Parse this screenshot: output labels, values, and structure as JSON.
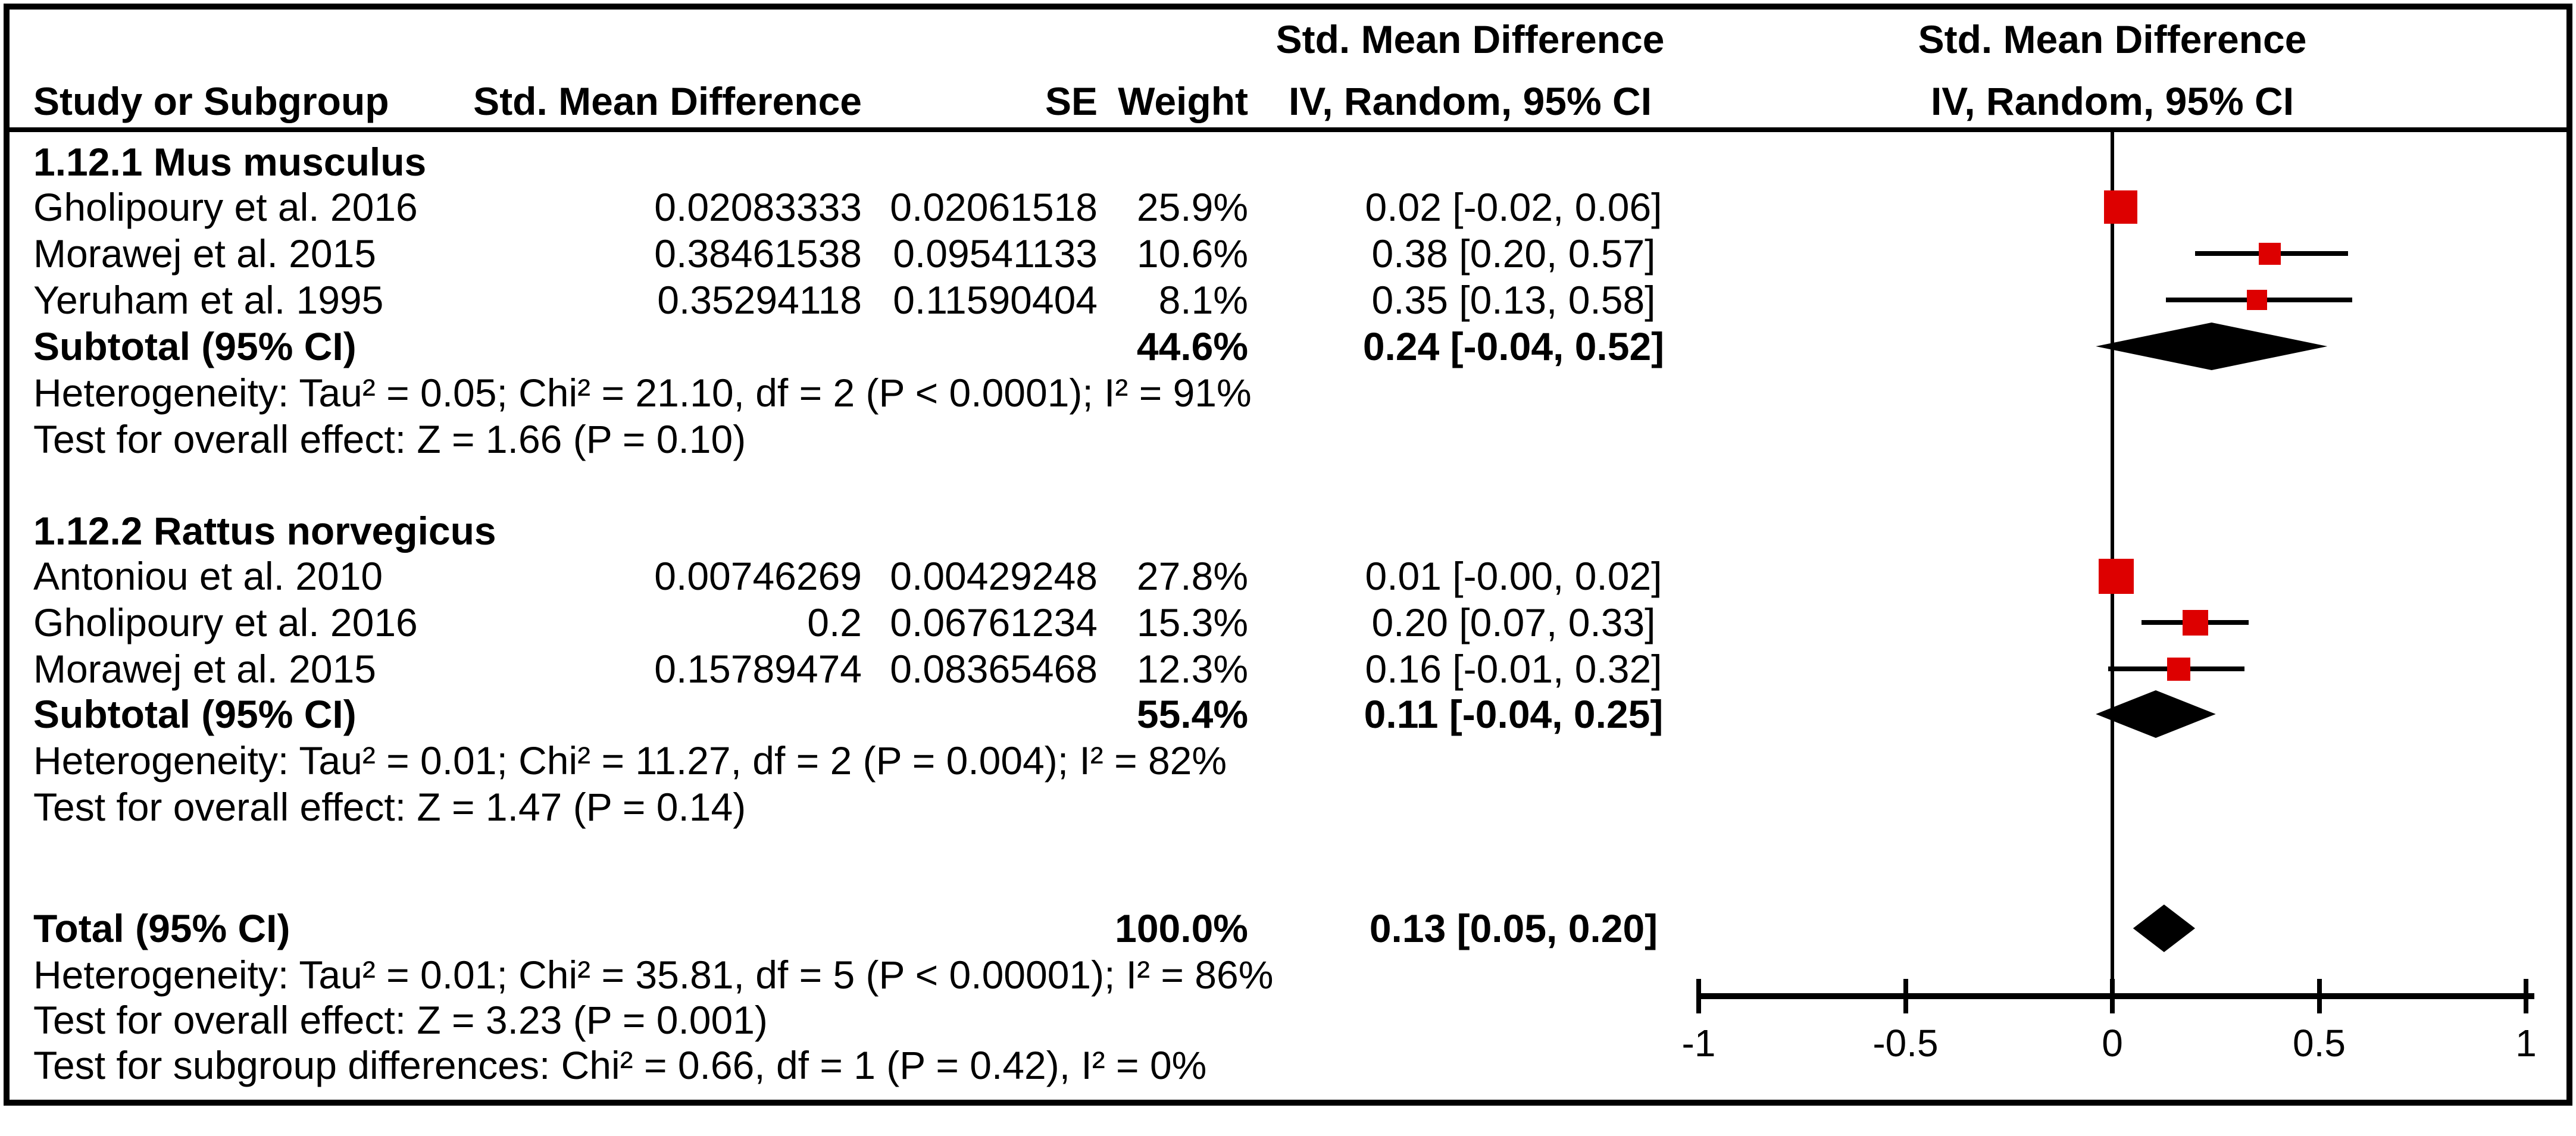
{
  "header": {
    "col_study": "Study or Subgroup",
    "col_smd": "Std. Mean Difference",
    "col_se": "SE",
    "col_weight": "Weight",
    "ci_col_line1": "Std. Mean Difference",
    "ci_col_line2": "IV, Random, 95% CI",
    "plot_col_line1": "Std. Mean Difference",
    "plot_col_line2": "IV, Random, 95% CI"
  },
  "colors": {
    "marker_red": "#dd0000",
    "diamond_black": "#000000",
    "text": "#000000",
    "border": "#000000"
  },
  "chart_data": {
    "type": "forest",
    "effect_measure": "Std. Mean Difference",
    "model": "IV, Random, 95% CI",
    "axis": {
      "min": -1,
      "max": 1,
      "tick_values": [
        -1,
        -0.5,
        0,
        0.5,
        1
      ],
      "tick_labels": [
        "-1",
        "-0.5",
        "0",
        "0.5",
        "1"
      ]
    },
    "groups": [
      {
        "title": "1.12.1 Mus musculus",
        "studies": [
          {
            "name": "Gholipoury et al. 2016",
            "smd": "0.02083333",
            "se": "0.02061518",
            "weight": "25.9%",
            "weight_pct": 25.9,
            "ci_text": "0.02 [-0.02, 0.06]",
            "est": 0.02,
            "lo": -0.02,
            "hi": 0.06
          },
          {
            "name": "Morawej et al. 2015",
            "smd": "0.38461538",
            "se": "0.09541133",
            "weight": "10.6%",
            "weight_pct": 10.6,
            "ci_text": "0.38 [0.20, 0.57]",
            "est": 0.38,
            "lo": 0.2,
            "hi": 0.57
          },
          {
            "name": "Yeruham et al. 1995",
            "smd": "0.35294118",
            "se": "0.11590404",
            "weight": "8.1%",
            "weight_pct": 8.1,
            "ci_text": "0.35 [0.13, 0.58]",
            "est": 0.35,
            "lo": 0.13,
            "hi": 0.58
          }
        ],
        "subtotal": {
          "label": "Subtotal (95% CI)",
          "weight": "44.6%",
          "ci_text": "0.24 [-0.04, 0.52]",
          "est": 0.24,
          "lo": -0.04,
          "hi": 0.52
        },
        "heterogeneity": "Heterogeneity: Tau² = 0.05; Chi² = 21.10, df = 2 (P < 0.0001); I² = 91%",
        "overall_effect": "Test for overall effect: Z = 1.66 (P = 0.10)"
      },
      {
        "title": "1.12.2 Rattus norvegicus",
        "studies": [
          {
            "name": "Antoniou et al. 2010",
            "smd": "0.00746269",
            "se": "0.00429248",
            "weight": "27.8%",
            "weight_pct": 27.8,
            "ci_text": "0.01 [-0.00, 0.02]",
            "est": 0.01,
            "lo": -0.005,
            "hi": 0.02
          },
          {
            "name": "Gholipoury et al. 2016",
            "smd": "0.2",
            "se": "0.06761234",
            "weight": "15.3%",
            "weight_pct": 15.3,
            "ci_text": "0.20 [0.07, 0.33]",
            "est": 0.2,
            "lo": 0.07,
            "hi": 0.33
          },
          {
            "name": "Morawej et al. 2015",
            "smd": "0.15789474",
            "se": "0.08365468",
            "weight": "12.3%",
            "weight_pct": 12.3,
            "ci_text": "0.16 [-0.01, 0.32]",
            "est": 0.16,
            "lo": -0.01,
            "hi": 0.32
          }
        ],
        "subtotal": {
          "label": "Subtotal (95% CI)",
          "weight": "55.4%",
          "ci_text": "0.11 [-0.04, 0.25]",
          "est": 0.11,
          "lo": -0.04,
          "hi": 0.25
        },
        "heterogeneity": "Heterogeneity: Tau² = 0.01; Chi² = 11.27, df = 2 (P = 0.004); I² = 82%",
        "overall_effect": "Test for overall effect: Z = 1.47 (P = 0.14)"
      }
    ],
    "total": {
      "label": "Total (95% CI)",
      "weight": "100.0%",
      "ci_text": "0.13 [0.05, 0.20]",
      "est": 0.13,
      "lo": 0.05,
      "hi": 0.2
    },
    "total_heterogeneity": "Heterogeneity: Tau² = 0.01; Chi² = 35.81, df = 5 (P < 0.00001); I² = 86%",
    "total_overall_effect": "Test for overall effect: Z = 3.23 (P = 0.001)",
    "subgroup_differences": "Test for subgroup differences: Chi² = 0.66, df = 1 (P = 0.42), I² = 0%"
  }
}
